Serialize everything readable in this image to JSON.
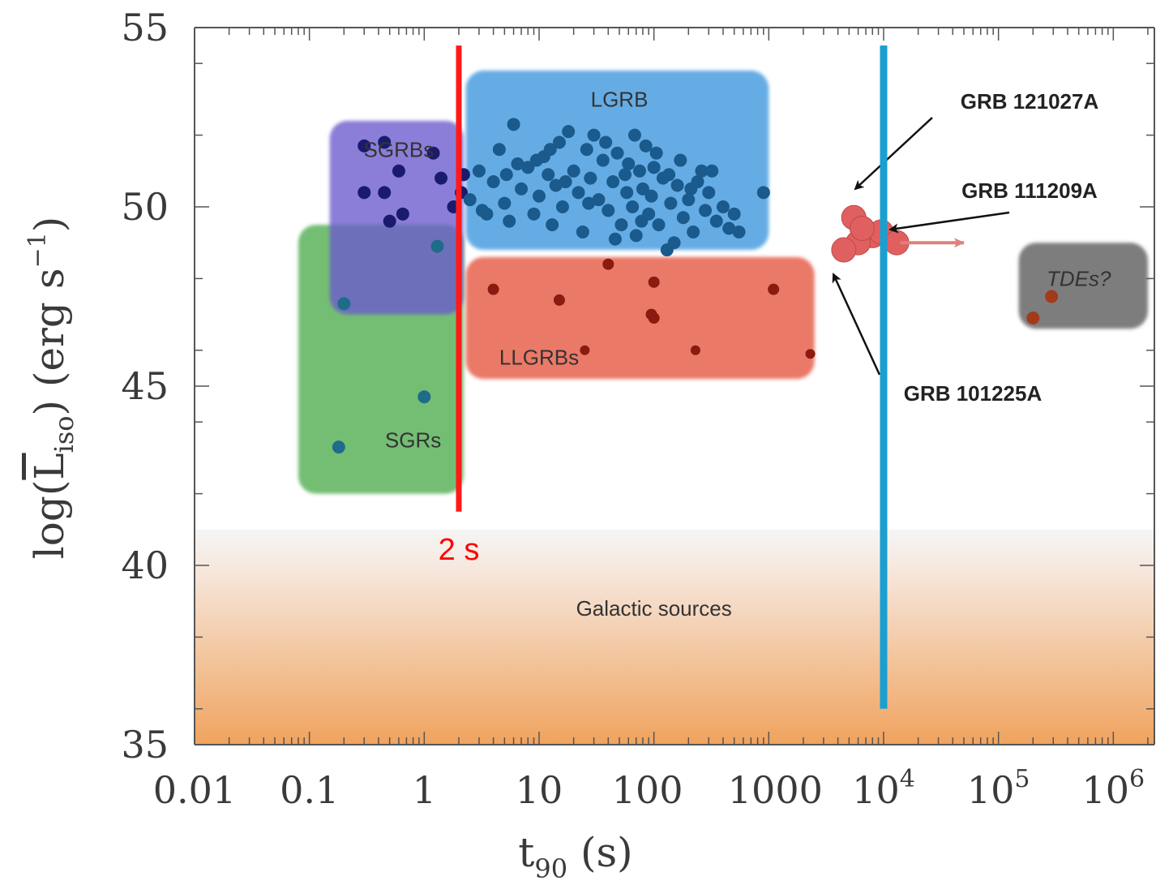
{
  "chart_data": {
    "type": "scatter",
    "title": "",
    "xlabel": "t",
    "xlabel_sub": "90",
    "xlabel_unit": " (s)",
    "ylabel_prefix": "log(",
    "ylabel_main": "L",
    "ylabel_sub": "iso",
    "ylabel_suffix": ") (erg s",
    "ylabel_sup": "−1",
    "ylabel_end": ")",
    "x_scale": "log",
    "xlim": [
      0.01,
      2000000
    ],
    "ylim": [
      35,
      55
    ],
    "x_ticks": [
      {
        "value": 0.01,
        "label": "0.01"
      },
      {
        "value": 0.1,
        "label": "0.1"
      },
      {
        "value": 1,
        "label": "1"
      },
      {
        "value": 10,
        "label": "10"
      },
      {
        "value": 100,
        "label": "100"
      },
      {
        "value": 1000,
        "label": "1000"
      },
      {
        "value": 10000,
        "label": "10",
        "sup": "4"
      },
      {
        "value": 100000,
        "label": "10",
        "sup": "5"
      },
      {
        "value": 1000000,
        "label": "10",
        "sup": "6"
      }
    ],
    "y_ticks": [
      {
        "value": 55,
        "label": "55"
      },
      {
        "value": 50,
        "label": "50"
      },
      {
        "value": 45,
        "label": "45"
      },
      {
        "value": 40,
        "label": "40"
      },
      {
        "value": 35,
        "label": "35"
      }
    ],
    "regions": [
      {
        "name": "SGRs",
        "label": "SGRs",
        "color": "#5cb35c",
        "x": [
          0.08,
          2.2
        ],
        "y": [
          42.0,
          49.5
        ],
        "label_at": [
          0.8,
          43.5
        ]
      },
      {
        "name": "SGRBs",
        "label": "SGRBs",
        "color": "#6a5acd",
        "x": [
          0.15,
          2.2
        ],
        "y": [
          47.0,
          52.4
        ],
        "label_at": [
          0.6,
          51.6
        ]
      },
      {
        "name": "LGRB",
        "label": "LGRB",
        "color": "#4a9ee0",
        "x": [
          2.3,
          1000
        ],
        "y": [
          48.8,
          53.8
        ],
        "label_at": [
          50,
          53.0
        ]
      },
      {
        "name": "LLGRBs",
        "label": "LLGRBs",
        "color": "#e8604c",
        "x": [
          2.3,
          2500
        ],
        "y": [
          45.2,
          48.6
        ],
        "label_at": [
          10,
          45.8
        ]
      },
      {
        "name": "TDEs",
        "label": "TDEs?",
        "color": "#666666",
        "x": [
          150000,
          2000000
        ],
        "y": [
          46.6,
          49.0
        ],
        "label_at": [
          500000,
          48.0
        ]
      },
      {
        "name": "Galactic sources",
        "label": "Galactic sources",
        "color": "#f0a060",
        "x": [
          0.01,
          2000000
        ],
        "y": [
          35,
          41
        ],
        "label_at": [
          100,
          38.8
        ]
      }
    ],
    "series": [
      {
        "name": "SGRs",
        "color": "#1f6b8a",
        "points": [
          [
            0.18,
            43.3
          ],
          [
            0.2,
            47.3
          ],
          [
            1.0,
            44.7
          ],
          [
            1.3,
            48.9
          ]
        ]
      },
      {
        "name": "SGRBs",
        "color": "#1b1b6e",
        "points": [
          [
            0.3,
            51.7
          ],
          [
            0.3,
            50.4
          ],
          [
            0.45,
            50.4
          ],
          [
            0.5,
            49.6
          ],
          [
            0.6,
            51.0
          ],
          [
            0.65,
            49.8
          ],
          [
            0.45,
            51.8
          ],
          [
            1.2,
            51.5
          ],
          [
            1.4,
            50.8
          ],
          [
            1.8,
            50.0
          ],
          [
            2.1,
            50.4
          ],
          [
            2.2,
            50.9
          ]
        ]
      },
      {
        "name": "LGRB",
        "color": "#1a5a8c",
        "points": [
          [
            2.5,
            50.2
          ],
          [
            3.0,
            51.0
          ],
          [
            3.5,
            49.8
          ],
          [
            4.0,
            50.7
          ],
          [
            4.5,
            51.6
          ],
          [
            5.0,
            50.1
          ],
          [
            5.5,
            49.6
          ],
          [
            6.0,
            52.3
          ],
          [
            6.5,
            51.2
          ],
          [
            7.0,
            50.5
          ],
          [
            8.0,
            51.1
          ],
          [
            9.0,
            49.8
          ],
          [
            10,
            50.3
          ],
          [
            11,
            51.4
          ],
          [
            12,
            50.9
          ],
          [
            13,
            49.5
          ],
          [
            14,
            50.6
          ],
          [
            15,
            51.8
          ],
          [
            16,
            50.0
          ],
          [
            18,
            52.1
          ],
          [
            20,
            51.0
          ],
          [
            22,
            50.4
          ],
          [
            24,
            49.3
          ],
          [
            26,
            51.6
          ],
          [
            28,
            50.8
          ],
          [
            30,
            52.0
          ],
          [
            33,
            50.2
          ],
          [
            36,
            51.3
          ],
          [
            40,
            49.9
          ],
          [
            44,
            50.7
          ],
          [
            48,
            51.5
          ],
          [
            52,
            49.5
          ],
          [
            56,
            50.9
          ],
          [
            60,
            51.2
          ],
          [
            65,
            50.0
          ],
          [
            70,
            49.2
          ],
          [
            75,
            51.0
          ],
          [
            80,
            50.5
          ],
          [
            85,
            51.7
          ],
          [
            90,
            49.8
          ],
          [
            95,
            50.3
          ],
          [
            100,
            51.1
          ],
          [
            110,
            49.5
          ],
          [
            120,
            50.8
          ],
          [
            130,
            48.8
          ],
          [
            140,
            50.1
          ],
          [
            150,
            49.0
          ],
          [
            160,
            50.6
          ],
          [
            170,
            51.3
          ],
          [
            180,
            49.7
          ],
          [
            200,
            50.2
          ],
          [
            220,
            49.3
          ],
          [
            240,
            50.7
          ],
          [
            260,
            51.0
          ],
          [
            280,
            49.9
          ],
          [
            300,
            50.4
          ],
          [
            350,
            49.6
          ],
          [
            400,
            50.0
          ],
          [
            450,
            49.4
          ],
          [
            500,
            49.8
          ],
          [
            5.2,
            50.9
          ],
          [
            9.5,
            51.3
          ],
          [
            17,
            50.7
          ],
          [
            27,
            50.1
          ],
          [
            38,
            51.8
          ],
          [
            58,
            50.4
          ],
          [
            78,
            49.6
          ],
          [
            105,
            51.5
          ],
          [
            135,
            50.9
          ],
          [
            210,
            50.5
          ],
          [
            3.2,
            49.9
          ],
          [
            12.5,
            51.6
          ],
          [
            46,
            49.1
          ],
          [
            68,
            52.0
          ],
          [
            320,
            51.0
          ],
          [
            900,
            50.4
          ],
          [
            550,
            49.3
          ]
        ]
      },
      {
        "name": "LLGRBs",
        "color": "#8b1a10",
        "points": [
          [
            4,
            47.7
          ],
          [
            15,
            47.4
          ],
          [
            25,
            46.0
          ],
          [
            40,
            48.4
          ],
          [
            95,
            47.0
          ],
          [
            100,
            47.9
          ],
          [
            230,
            46.0
          ],
          [
            1100,
            47.7
          ],
          [
            2300,
            45.9
          ],
          [
            100,
            46.9
          ]
        ]
      },
      {
        "name": "TDEs",
        "color": "#a33a1a",
        "points": [
          [
            200000,
            46.9
          ],
          [
            290000,
            47.5
          ]
        ]
      }
    ],
    "grb_cluster": {
      "color": "#e06060",
      "points": [
        [
          5500,
          49.7
        ],
        [
          8000,
          49.2
        ],
        [
          6000,
          49.0
        ],
        [
          9500,
          49.3
        ],
        [
          13000,
          49.0
        ],
        [
          4500,
          48.8
        ],
        [
          6500,
          49.4
        ]
      ]
    },
    "vertical_lines": [
      {
        "name": "2s-line",
        "x": 2,
        "y": [
          41.5,
          54.5
        ],
        "color": "#ff1a1a",
        "label": "2 s"
      },
      {
        "name": "10ks-line",
        "x": 10000,
        "y": [
          36.0,
          54.5
        ],
        "color": "#1a9fd0",
        "label": ""
      }
    ],
    "annotations": [
      {
        "name": "grb-121027a",
        "label": "GRB 121027A"
      },
      {
        "name": "grb-111209a",
        "label": "GRB 111209A"
      },
      {
        "name": "grb-101225a",
        "label": "GRB 101225A"
      }
    ],
    "grid": false,
    "legend": "none"
  }
}
